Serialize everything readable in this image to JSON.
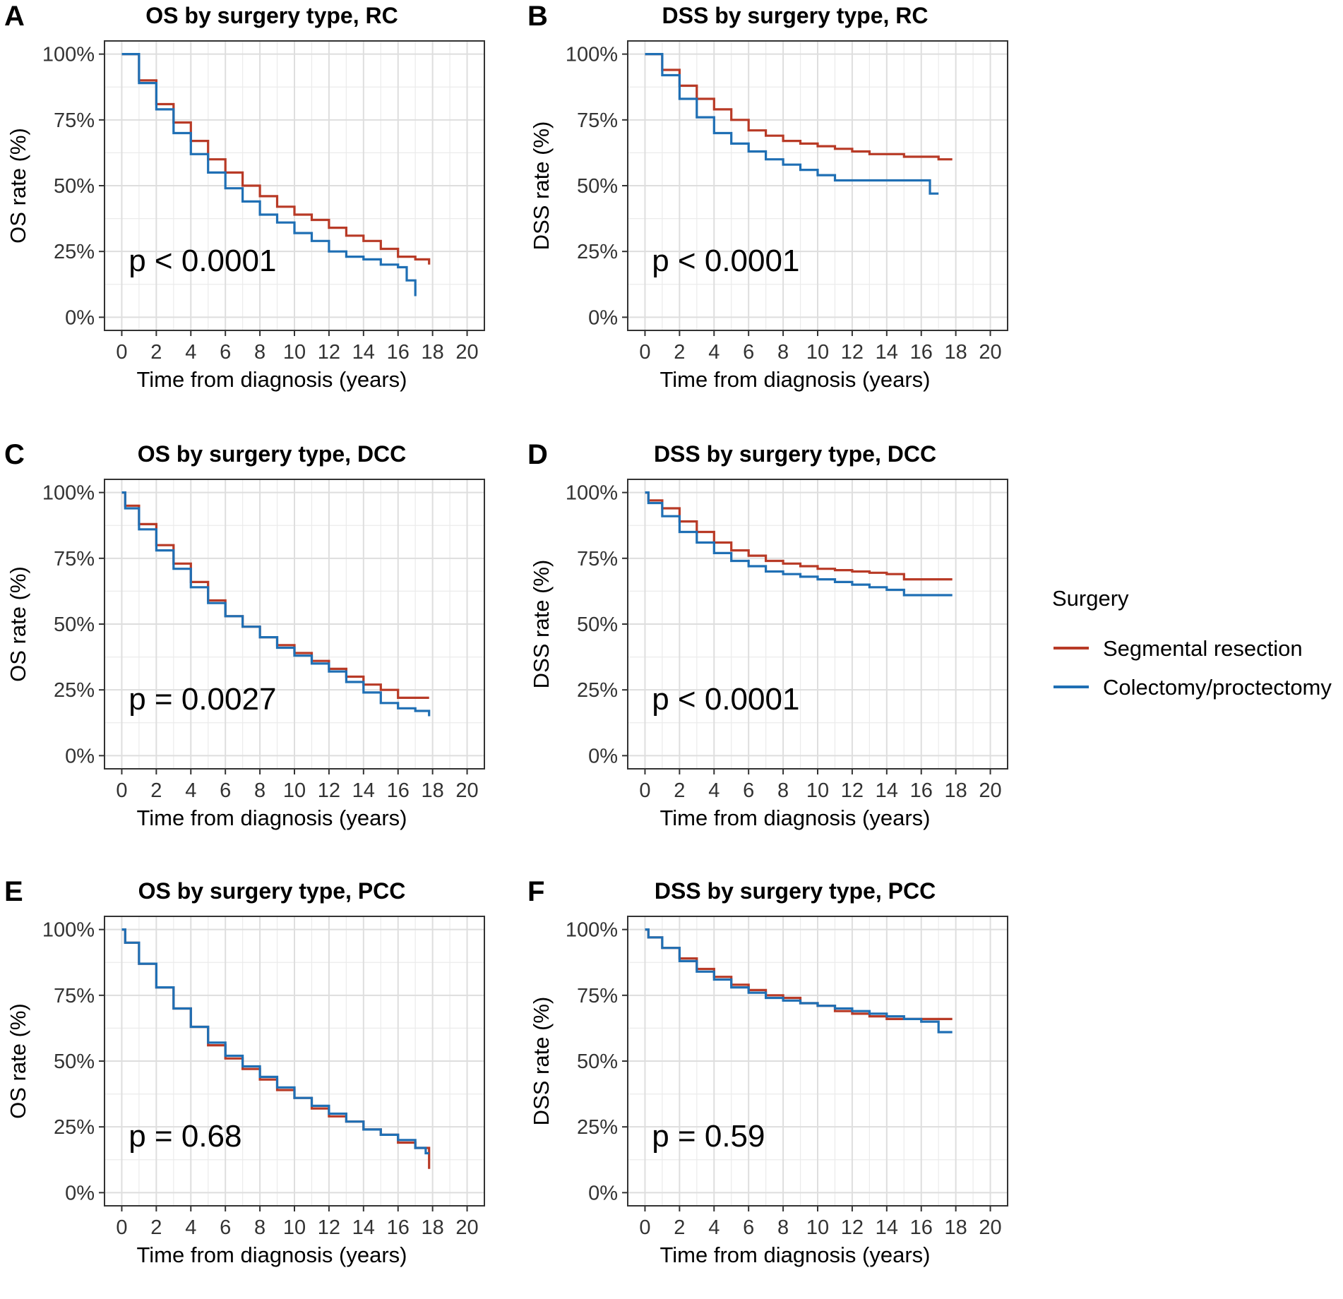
{
  "legend": {
    "title": "Surgery",
    "entries": [
      {
        "label": "Segmental resection",
        "color": "#B83A26"
      },
      {
        "label": "Colectomy/proctectomy",
        "color": "#1F6FB4"
      }
    ]
  },
  "chart_data": [
    {
      "type": "line",
      "panel": "A",
      "title": "OS by surgery type, RC",
      "xlabel": "Time from diagnosis (years)",
      "ylabel": "OS rate (%)",
      "xlim": [
        -1,
        21
      ],
      "ylim": [
        -5,
        105
      ],
      "xticks": [
        0,
        2,
        4,
        6,
        8,
        10,
        12,
        14,
        16,
        18,
        20
      ],
      "yticks": [
        0,
        25,
        50,
        75,
        100
      ],
      "ytick_labels": [
        "0%",
        "25%",
        "50%",
        "75%",
        "100%"
      ],
      "annotation": "p < 0.0001",
      "series": [
        {
          "name": "Segmental resection",
          "x": [
            0,
            1,
            2,
            3,
            4,
            5,
            6,
            7,
            8,
            9,
            10,
            11,
            12,
            13,
            14,
            15,
            16,
            17,
            17.8
          ],
          "y": [
            100,
            90,
            81,
            74,
            67,
            60,
            55,
            50,
            46,
            42,
            39,
            37,
            34,
            31,
            29,
            26,
            23,
            22,
            20
          ]
        },
        {
          "name": "Colectomy/proctectomy",
          "x": [
            0,
            1,
            2,
            3,
            4,
            5,
            6,
            7,
            8,
            9,
            10,
            11,
            12,
            13,
            14,
            15,
            16,
            16.5,
            17
          ],
          "y": [
            100,
            89,
            79,
            70,
            62,
            55,
            49,
            44,
            39,
            36,
            32,
            29,
            25,
            23,
            22,
            20,
            19,
            14,
            8
          ]
        }
      ]
    },
    {
      "type": "line",
      "panel": "B",
      "title": "DSS by surgery type, RC",
      "xlabel": "Time from diagnosis (years)",
      "ylabel": "DSS rate (%)",
      "xlim": [
        -1,
        21
      ],
      "ylim": [
        -5,
        105
      ],
      "xticks": [
        0,
        2,
        4,
        6,
        8,
        10,
        12,
        14,
        16,
        18,
        20
      ],
      "yticks": [
        0,
        25,
        50,
        75,
        100
      ],
      "ytick_labels": [
        "0%",
        "25%",
        "50%",
        "75%",
        "100%"
      ],
      "annotation": "p < 0.0001",
      "series": [
        {
          "name": "Segmental resection",
          "x": [
            0,
            1,
            2,
            3,
            4,
            5,
            6,
            7,
            8,
            9,
            10,
            11,
            12,
            13,
            14,
            15,
            16,
            17,
            17.8
          ],
          "y": [
            100,
            94,
            88,
            83,
            79,
            75,
            71,
            69,
            67,
            66,
            65,
            64,
            63,
            62,
            62,
            61,
            61,
            60,
            60
          ]
        },
        {
          "name": "Colectomy/proctectomy",
          "x": [
            0,
            1,
            2,
            3,
            4,
            5,
            6,
            7,
            8,
            9,
            10,
            11,
            12,
            13,
            14,
            15,
            16,
            16.3,
            16.5,
            17
          ],
          "y": [
            100,
            92,
            83,
            76,
            70,
            66,
            63,
            60,
            58,
            56,
            54,
            52,
            52,
            52,
            52,
            52,
            52,
            52,
            47,
            47
          ]
        }
      ]
    },
    {
      "type": "line",
      "panel": "C",
      "title": "OS by surgery type, DCC",
      "xlabel": "Time from diagnosis (years)",
      "ylabel": "OS rate (%)",
      "xlim": [
        -1,
        21
      ],
      "ylim": [
        -5,
        105
      ],
      "xticks": [
        0,
        2,
        4,
        6,
        8,
        10,
        12,
        14,
        16,
        18,
        20
      ],
      "yticks": [
        0,
        25,
        50,
        75,
        100
      ],
      "ytick_labels": [
        "0%",
        "25%",
        "50%",
        "75%",
        "100%"
      ],
      "annotation": "p = 0.0027",
      "series": [
        {
          "name": "Segmental resection",
          "x": [
            0,
            0.2,
            1,
            2,
            3,
            4,
            5,
            6,
            7,
            8,
            9,
            10,
            11,
            12,
            13,
            14,
            15,
            16,
            17,
            17.8
          ],
          "y": [
            100,
            95,
            88,
            80,
            73,
            66,
            59,
            53,
            49,
            45,
            42,
            39,
            36,
            33,
            30,
            27,
            25,
            22,
            22,
            22
          ]
        },
        {
          "name": "Colectomy/proctectomy",
          "x": [
            0,
            0.2,
            1,
            2,
            3,
            4,
            5,
            6,
            7,
            8,
            9,
            10,
            11,
            12,
            13,
            14,
            15,
            16,
            17,
            17.5,
            17.8
          ],
          "y": [
            100,
            94,
            86,
            78,
            71,
            64,
            58,
            53,
            49,
            45,
            41,
            38,
            35,
            32,
            28,
            24,
            20,
            18,
            17,
            17,
            15
          ]
        }
      ]
    },
    {
      "type": "line",
      "panel": "D",
      "title": "DSS by surgery type, DCC",
      "xlabel": "Time from diagnosis (years)",
      "ylabel": "DSS rate (%)",
      "xlim": [
        -1,
        21
      ],
      "ylim": [
        -5,
        105
      ],
      "xticks": [
        0,
        2,
        4,
        6,
        8,
        10,
        12,
        14,
        16,
        18,
        20
      ],
      "yticks": [
        0,
        25,
        50,
        75,
        100
      ],
      "ytick_labels": [
        "0%",
        "25%",
        "50%",
        "75%",
        "100%"
      ],
      "annotation": "p < 0.0001",
      "series": [
        {
          "name": "Segmental resection",
          "x": [
            0,
            0.2,
            1,
            2,
            3,
            4,
            5,
            6,
            7,
            8,
            9,
            10,
            11,
            12,
            13,
            14,
            15,
            16,
            17,
            17.8
          ],
          "y": [
            100,
            97,
            94,
            89,
            85,
            81,
            78,
            76,
            74,
            73,
            72,
            71,
            70.5,
            70,
            69.5,
            69,
            67,
            67,
            67,
            67
          ]
        },
        {
          "name": "Colectomy/proctectomy",
          "x": [
            0,
            0.2,
            1,
            2,
            3,
            4,
            5,
            6,
            7,
            8,
            9,
            10,
            11,
            12,
            13,
            14,
            15,
            16,
            17,
            17.8
          ],
          "y": [
            100,
            96,
            91,
            85,
            81,
            77,
            74,
            72,
            70,
            69,
            68,
            67,
            66,
            65,
            64,
            63,
            61,
            61,
            61,
            61
          ]
        }
      ]
    },
    {
      "type": "line",
      "panel": "E",
      "title": "OS by surgery type, PCC",
      "xlabel": "Time from diagnosis (years)",
      "ylabel": "OS rate (%)",
      "xlim": [
        -1,
        21
      ],
      "ylim": [
        -5,
        105
      ],
      "xticks": [
        0,
        2,
        4,
        6,
        8,
        10,
        12,
        14,
        16,
        18,
        20
      ],
      "yticks": [
        0,
        25,
        50,
        75,
        100
      ],
      "ytick_labels": [
        "0%",
        "25%",
        "50%",
        "75%",
        "100%"
      ],
      "annotation": "p = 0.68",
      "series": [
        {
          "name": "Segmental resection",
          "x": [
            0,
            0.2,
            1,
            2,
            3,
            4,
            5,
            6,
            7,
            8,
            9,
            10,
            11,
            12,
            13,
            14,
            15,
            16,
            17,
            17.6,
            17.8
          ],
          "y": [
            100,
            95,
            87,
            78,
            70,
            63,
            56,
            51,
            47,
            43,
            39,
            36,
            32,
            29,
            27,
            24,
            22,
            19,
            17,
            17,
            9
          ]
        },
        {
          "name": "Colectomy/proctectomy",
          "x": [
            0,
            0.2,
            1,
            2,
            3,
            4,
            5,
            6,
            7,
            8,
            9,
            10,
            11,
            12,
            13,
            14,
            15,
            16,
            17,
            17.6,
            17.8
          ],
          "y": [
            100,
            95,
            87,
            78,
            70,
            63,
            57,
            52,
            48,
            44,
            40,
            36,
            33,
            30,
            27,
            24,
            22,
            20,
            17,
            15,
            15
          ]
        }
      ]
    },
    {
      "type": "line",
      "panel": "F",
      "title": "DSS by surgery type, PCC",
      "xlabel": "Time from diagnosis (years)",
      "ylabel": "DSS rate (%)",
      "xlim": [
        -1,
        21
      ],
      "ylim": [
        -5,
        105
      ],
      "xticks": [
        0,
        2,
        4,
        6,
        8,
        10,
        12,
        14,
        16,
        18,
        20
      ],
      "yticks": [
        0,
        25,
        50,
        75,
        100
      ],
      "ytick_labels": [
        "0%",
        "25%",
        "50%",
        "75%",
        "100%"
      ],
      "annotation": "p = 0.59",
      "series": [
        {
          "name": "Segmental resection",
          "x": [
            0,
            0.2,
            1,
            2,
            3,
            4,
            5,
            6,
            7,
            8,
            9,
            10,
            11,
            12,
            13,
            14,
            15,
            16,
            17,
            17.8
          ],
          "y": [
            100,
            97,
            93,
            89,
            85,
            82,
            79,
            77,
            75,
            74,
            72,
            71,
            69,
            68,
            67,
            66,
            66,
            66,
            66,
            66
          ]
        },
        {
          "name": "Colectomy/proctectomy",
          "x": [
            0,
            0.2,
            1,
            2,
            3,
            4,
            5,
            6,
            7,
            8,
            9,
            10,
            11,
            12,
            13,
            14,
            15,
            16,
            17,
            17.8
          ],
          "y": [
            100,
            97,
            93,
            88,
            84,
            81,
            78,
            76,
            74,
            73,
            72,
            71,
            70,
            69,
            68,
            67,
            66,
            65,
            61,
            61
          ]
        }
      ]
    }
  ]
}
